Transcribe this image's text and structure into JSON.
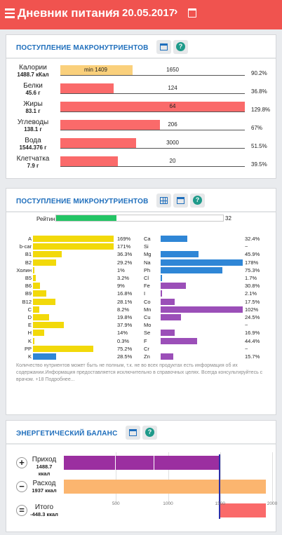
{
  "header": {
    "title": "Дневник питания",
    "prev": "‹",
    "date": "20.05.2017",
    "next": "›",
    "color": "#f0534f"
  },
  "macro": {
    "title": "ПОСТУПЛЕНИЕ МАКРОНУТРИЕНТОВ",
    "items": [
      {
        "name": "Калории",
        "value": "1488.7 кКал",
        "norm": "1650",
        "pct": "90.2%",
        "fill": 0.39,
        "min": "min 1409",
        "color": "#fad07c"
      },
      {
        "name": "Белки",
        "value": "45.6 г",
        "norm": "124",
        "pct": "36.8%",
        "fill": 0.29,
        "color": "#fa6a6a"
      },
      {
        "name": "Жиры",
        "value": "83.1 г",
        "norm": "64",
        "pct": "129.8%",
        "fill": 1.0,
        "color": "#fa6a6a"
      },
      {
        "name": "Углеводы",
        "value": "138.1 г",
        "norm": "206",
        "pct": "67%",
        "fill": 0.54,
        "color": "#fa6a6a"
      },
      {
        "name": "Вода",
        "value": "1544.376 г",
        "norm": "3000",
        "pct": "51.5%",
        "fill": 0.41,
        "color": "#fa6a6a"
      },
      {
        "name": "Клетчатка",
        "value": "7.9 г",
        "norm": "20",
        "pct": "39.5%",
        "fill": 0.31,
        "color": "#fa6a6a"
      }
    ]
  },
  "micro": {
    "title": "ПОСТУПЛЕНИЕ МИКРОНУТРИЕНТОВ",
    "rating_label": "Рейтинг",
    "rating_value": "32",
    "rating_fill": 0.36,
    "rating_color": "#22c464",
    "vitamins": [
      {
        "name": "A",
        "pct": "169%",
        "fill": 1.0,
        "color": "#f2d90a"
      },
      {
        "name": "b-car",
        "pct": "171%",
        "fill": 1.0,
        "color": "#f2d90a"
      },
      {
        "name": "B1",
        "pct": "36.3%",
        "fill": 0.36,
        "color": "#f2d90a"
      },
      {
        "name": "B2",
        "pct": "29.2%",
        "fill": 0.29,
        "color": "#f2d90a"
      },
      {
        "name": "Холин",
        "pct": "1%",
        "fill": 0.01,
        "color": "#f2d90a"
      },
      {
        "name": "B5",
        "pct": "3.2%",
        "fill": 0.032,
        "color": "#f2d90a"
      },
      {
        "name": "B6",
        "pct": "9%",
        "fill": 0.09,
        "color": "#f2d90a"
      },
      {
        "name": "B9",
        "pct": "16.8%",
        "fill": 0.168,
        "color": "#f2d90a"
      },
      {
        "name": "B12",
        "pct": "28.1%",
        "fill": 0.281,
        "color": "#f2d90a"
      },
      {
        "name": "C",
        "pct": "8.2%",
        "fill": 0.082,
        "color": "#f2d90a"
      },
      {
        "name": "D",
        "pct": "19.8%",
        "fill": 0.198,
        "color": "#f2d90a"
      },
      {
        "name": "E",
        "pct": "37.9%",
        "fill": 0.379,
        "color": "#f2d90a"
      },
      {
        "name": "H",
        "pct": "14%",
        "fill": 0.14,
        "color": "#f2d90a"
      },
      {
        "name": "K",
        "pct": "0.3%",
        "fill": 0.003,
        "color": "#f2d90a"
      },
      {
        "name": "PP",
        "pct": "75.2%",
        "fill": 0.752,
        "color": "#f2d90a"
      },
      {
        "name": "K",
        "pct": "28.5%",
        "fill": 0.285,
        "color": "#2f86d6"
      }
    ],
    "minerals": [
      {
        "name": "Ca",
        "pct": "32.4%",
        "fill": 0.324,
        "color": "#2f86d6"
      },
      {
        "name": "Si",
        "pct": "~",
        "fill": 0,
        "color": "#2f86d6"
      },
      {
        "name": "Mg",
        "pct": "45.9%",
        "fill": 0.459,
        "color": "#2f86d6"
      },
      {
        "name": "Na",
        "pct": "178%",
        "fill": 1.0,
        "color": "#2f86d6"
      },
      {
        "name": "Ph",
        "pct": "75.3%",
        "fill": 0.753,
        "color": "#2f86d6"
      },
      {
        "name": "Cl",
        "pct": "1.7%",
        "fill": 0.017,
        "color": "#2f86d6"
      },
      {
        "name": "Fe",
        "pct": "30.8%",
        "fill": 0.308,
        "color": "#9b4fb8"
      },
      {
        "name": "I",
        "pct": "2.1%",
        "fill": 0.021,
        "color": "#9b4fb8"
      },
      {
        "name": "Co",
        "pct": "17.5%",
        "fill": 0.175,
        "color": "#9b4fb8"
      },
      {
        "name": "Mn",
        "pct": "102%",
        "fill": 1.0,
        "color": "#9b4fb8"
      },
      {
        "name": "Cu",
        "pct": "24.5%",
        "fill": 0.245,
        "color": "#9b4fb8"
      },
      {
        "name": "Mo",
        "pct": "~",
        "fill": 0,
        "color": "#9b4fb8"
      },
      {
        "name": "Se",
        "pct": "16.9%",
        "fill": 0.169,
        "color": "#9b4fb8"
      },
      {
        "name": "F",
        "pct": "44.4%",
        "fill": 0.444,
        "color": "#9b4fb8"
      },
      {
        "name": "Cr",
        "pct": "~",
        "fill": 0,
        "color": "#9b4fb8"
      },
      {
        "name": "Zn",
        "pct": "15.7%",
        "fill": 0.157,
        "color": "#9b4fb8"
      }
    ],
    "note": "Количество нутриентов может быть не полным, т.к. не во всех продуктах есть информация об их содержании.Информация предоставляется исключительно в справочных целях. Всегда консультируйтесь с врачом. +18 Подробнее..."
  },
  "energy": {
    "title": "ЭНЕРГЕТИЧЕСКИЙ БАЛАНС",
    "axis_max": 2000,
    "axis_ticks": [
      "500",
      "1000",
      "1500",
      "2000"
    ],
    "income": {
      "sign": "+",
      "label": "Приход",
      "value": "1488.7 ккал",
      "amount": 1488.7,
      "color": "#9b2fa0"
    },
    "expense": {
      "sign": "−",
      "label": "Расход",
      "value": "1937 ккал",
      "amount": 1937,
      "color": "#fbb56f"
    },
    "total": {
      "sign": "=",
      "label": "Итого",
      "value": "-448.3 ккал",
      "amount": -448.3,
      "color": "#fa6a6a"
    },
    "marker_color": "#2c2fa8"
  }
}
